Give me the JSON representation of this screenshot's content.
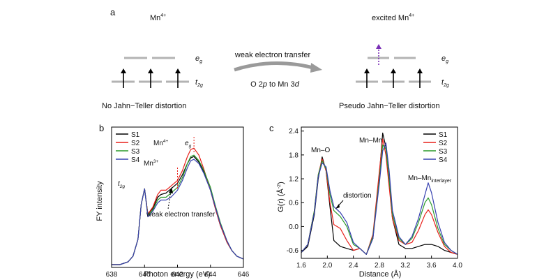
{
  "panel_a": {
    "label": "a",
    "left_title_base": "Mn",
    "left_title_sup": "4+",
    "right_title_prefix": "excited Mn",
    "right_title_sup": "4+",
    "eg_base": "e",
    "eg_sub": "g",
    "t2g_base": "t",
    "t2g_sub": "2g",
    "arrow_text_top": "weak electron transfer",
    "arrow_text_bottom_1": "O 2",
    "arrow_text_bottom_p": "p",
    "arrow_text_bottom_2": " to Mn 3",
    "arrow_text_bottom_d": "d",
    "left_caption": "No Jahn−Teller distortion",
    "right_caption": "Pseudo Jahn−Teller distortion",
    "colors": {
      "level": "#b3b3b3",
      "electron": "#000000",
      "excited": "#7a2fb5",
      "arrow": "#9a9a9a"
    }
  },
  "chart_data": [
    {
      "type": "line",
      "panel_label": "b",
      "xlabel": "Photon energy (eV)",
      "ylabel": "FY intensity",
      "xlim": [
        638,
        646
      ],
      "ylim": [
        0,
        1
      ],
      "xticks": [
        638,
        640,
        642,
        644,
        646
      ],
      "xtick_labels": [
        "638",
        "640",
        "642",
        "644",
        "646"
      ],
      "legend_position": "top-left",
      "series": [
        {
          "name": "S1",
          "color": "#000000",
          "x": [
            638,
            638.5,
            639,
            639.3,
            639.6,
            639.8,
            640.0,
            640.2,
            640.5,
            640.8,
            641.0,
            641.3,
            641.6,
            642.0,
            642.3,
            642.6,
            642.8,
            643.0,
            643.3,
            643.6,
            644.0,
            644.3,
            644.6,
            645.0,
            645.3,
            645.6,
            646.0
          ],
          "y": [
            0.02,
            0.02,
            0.04,
            0.08,
            0.2,
            0.45,
            0.56,
            0.38,
            0.42,
            0.5,
            0.52,
            0.53,
            0.56,
            0.6,
            0.66,
            0.74,
            0.78,
            0.79,
            0.75,
            0.68,
            0.55,
            0.42,
            0.3,
            0.18,
            0.12,
            0.08,
            0.06
          ]
        },
        {
          "name": "S2",
          "color": "#e8201a",
          "x": [
            638,
            638.5,
            639,
            639.3,
            639.6,
            639.8,
            640.0,
            640.2,
            640.5,
            640.8,
            641.0,
            641.3,
            641.6,
            642.0,
            642.3,
            642.6,
            642.8,
            643.0,
            643.3,
            643.6,
            644.0,
            644.3,
            644.6,
            645.0,
            645.3,
            645.6,
            646.0
          ],
          "y": [
            0.02,
            0.02,
            0.04,
            0.08,
            0.2,
            0.45,
            0.56,
            0.38,
            0.43,
            0.52,
            0.55,
            0.55,
            0.58,
            0.62,
            0.69,
            0.79,
            0.84,
            0.85,
            0.8,
            0.7,
            0.55,
            0.42,
            0.3,
            0.18,
            0.12,
            0.08,
            0.06
          ]
        },
        {
          "name": "S3",
          "color": "#2a9a2a",
          "x": [
            638,
            638.5,
            639,
            639.3,
            639.6,
            639.8,
            640.0,
            640.2,
            640.5,
            640.8,
            641.0,
            641.3,
            641.6,
            642.0,
            642.3,
            642.6,
            642.8,
            643.0,
            643.3,
            643.6,
            644.0,
            644.3,
            644.6,
            645.0,
            645.3,
            645.6,
            646.0
          ],
          "y": [
            0.02,
            0.02,
            0.04,
            0.08,
            0.2,
            0.45,
            0.56,
            0.37,
            0.41,
            0.48,
            0.5,
            0.5,
            0.53,
            0.57,
            0.64,
            0.74,
            0.79,
            0.8,
            0.76,
            0.69,
            0.57,
            0.44,
            0.32,
            0.19,
            0.12,
            0.08,
            0.06
          ]
        },
        {
          "name": "S4",
          "color": "#3640b0",
          "x": [
            638,
            638.5,
            639,
            639.3,
            639.6,
            639.8,
            640.0,
            640.2,
            640.5,
            640.8,
            641.0,
            641.3,
            641.6,
            642.0,
            642.3,
            642.6,
            642.8,
            643.0,
            643.3,
            643.6,
            644.0,
            644.3,
            644.6,
            645.0,
            645.3,
            645.6,
            646.0
          ],
          "y": [
            0.02,
            0.02,
            0.04,
            0.08,
            0.2,
            0.45,
            0.56,
            0.36,
            0.4,
            0.46,
            0.48,
            0.48,
            0.5,
            0.55,
            0.62,
            0.71,
            0.76,
            0.77,
            0.74,
            0.67,
            0.55,
            0.43,
            0.31,
            0.19,
            0.12,
            0.08,
            0.06
          ]
        }
      ],
      "annotations": {
        "t2g_base": "t",
        "t2g_sub": "2g",
        "mn4_base": "Mn",
        "mn4_sup": "4+",
        "mn3_base": "Mn",
        "mn3_sup": "3+",
        "eg_base": "e",
        "eg_sub": "g",
        "transfer": "weak electron transfer",
        "mn4_x": 643.0,
        "mn3_x": 642.0,
        "transfer_x": 641.6
      }
    },
    {
      "type": "line",
      "panel_label": "c",
      "xlabel": "Distance (Å)",
      "ylabel_base": "G(r) (Å",
      "ylabel_sup": "-2",
      "ylabel_end": ")",
      "xlim": [
        1.6,
        4.0
      ],
      "ylim": [
        -0.8,
        2.5
      ],
      "xticks": [
        1.6,
        2.0,
        2.4,
        2.8,
        3.2,
        3.6,
        4.0
      ],
      "xtick_labels": [
        "1.6",
        "2.0",
        "2.4",
        "2.8",
        "3.2",
        "3.6",
        "4.0"
      ],
      "yticks": [
        -0.6,
        0.0,
        0.6,
        1.2,
        1.8,
        2.4
      ],
      "ytick_labels": [
        "-0.6",
        "0.0",
        "0.6",
        "1.2",
        "1.8",
        "2.4"
      ],
      "legend_position": "top-right",
      "series": [
        {
          "name": "S1",
          "color": "#000000",
          "x": [
            1.6,
            1.7,
            1.8,
            1.86,
            1.92,
            1.98,
            2.04,
            2.1,
            2.2,
            2.3,
            2.4,
            2.5,
            2.6,
            2.7,
            2.8,
            2.85,
            2.9,
            2.95,
            3.0,
            3.1,
            3.2,
            3.3,
            3.4,
            3.5,
            3.6,
            3.7,
            3.8,
            3.9,
            4.0
          ],
          "y": [
            -0.65,
            -0.5,
            0.3,
            1.2,
            1.75,
            1.4,
            0.5,
            -0.35,
            -0.5,
            -0.55,
            -0.6,
            -0.55,
            -0.7,
            -0.3,
            1.3,
            2.35,
            2.0,
            1.1,
            0.2,
            -0.45,
            -0.55,
            -0.55,
            -0.5,
            -0.45,
            -0.45,
            -0.5,
            -0.6,
            -0.65,
            -0.7
          ]
        },
        {
          "name": "S2",
          "color": "#e8201a",
          "x": [
            1.6,
            1.7,
            1.8,
            1.86,
            1.92,
            1.98,
            2.04,
            2.1,
            2.2,
            2.3,
            2.4,
            2.5,
            2.6,
            2.7,
            2.8,
            2.85,
            2.9,
            2.95,
            3.0,
            3.1,
            3.2,
            3.3,
            3.4,
            3.5,
            3.55,
            3.6,
            3.7,
            3.8,
            3.9,
            4.0
          ],
          "y": [
            -0.65,
            -0.45,
            0.4,
            1.3,
            1.7,
            1.4,
            0.6,
            0.05,
            -0.05,
            -0.35,
            -0.6,
            -0.55,
            -0.7,
            -0.2,
            1.4,
            2.2,
            1.8,
            1.0,
            0.2,
            -0.35,
            -0.45,
            -0.4,
            -0.1,
            0.3,
            0.42,
            0.3,
            -0.15,
            -0.5,
            -0.65,
            -0.7
          ]
        },
        {
          "name": "S3",
          "color": "#2a9a2a",
          "x": [
            1.6,
            1.7,
            1.8,
            1.86,
            1.92,
            1.98,
            2.04,
            2.1,
            2.2,
            2.3,
            2.4,
            2.5,
            2.6,
            2.7,
            2.8,
            2.85,
            2.9,
            2.95,
            3.0,
            3.1,
            3.2,
            3.3,
            3.4,
            3.5,
            3.55,
            3.6,
            3.7,
            3.8,
            3.9,
            4.0
          ],
          "y": [
            -0.65,
            -0.45,
            0.4,
            1.3,
            1.65,
            1.45,
            0.8,
            0.4,
            0.25,
            0.0,
            -0.45,
            -0.55,
            -0.7,
            -0.25,
            1.2,
            2.05,
            1.95,
            1.2,
            0.3,
            -0.3,
            -0.45,
            -0.3,
            0.1,
            0.6,
            0.72,
            0.55,
            -0.05,
            -0.45,
            -0.6,
            -0.7
          ]
        },
        {
          "name": "S4",
          "color": "#3640b0",
          "x": [
            1.6,
            1.7,
            1.8,
            1.86,
            1.92,
            1.98,
            2.04,
            2.1,
            2.2,
            2.3,
            2.4,
            2.5,
            2.6,
            2.7,
            2.8,
            2.85,
            2.9,
            2.95,
            3.0,
            3.1,
            3.2,
            3.3,
            3.4,
            3.5,
            3.55,
            3.6,
            3.7,
            3.8,
            3.9,
            4.0
          ],
          "y": [
            -0.65,
            -0.45,
            0.35,
            1.25,
            1.6,
            1.5,
            0.9,
            0.5,
            0.35,
            0.1,
            -0.4,
            -0.55,
            -0.7,
            -0.3,
            1.1,
            1.9,
            2.1,
            1.4,
            0.4,
            -0.25,
            -0.45,
            -0.25,
            0.2,
            0.8,
            1.1,
            0.85,
            0.1,
            -0.4,
            -0.6,
            -0.7
          ]
        }
      ],
      "annotations": {
        "mno": "Mn–O",
        "mnmn": "Mn–Mn",
        "mnmn_inter_base": "Mn–Mn",
        "mnmn_inter_sub": "interlayer",
        "distortion": "distortion"
      }
    }
  ]
}
